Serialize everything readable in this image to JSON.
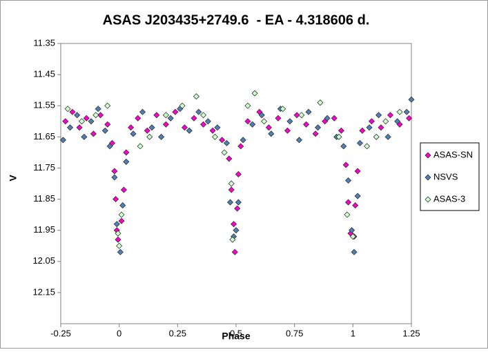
{
  "chart_data": {
    "type": "scatter",
    "title": "ASAS J203435+2749.6  - EA - 4.318606 d.",
    "x_label": "Phase",
    "y_label": "V",
    "xlim": [
      -0.25,
      1.25
    ],
    "xticks": [
      -0.25,
      0,
      0.25,
      0.5,
      0.75,
      1,
      1.25
    ],
    "ylim": [
      11.35,
      12.25
    ],
    "y_inverted": true,
    "yticks": [
      11.35,
      11.45,
      11.55,
      11.65,
      11.75,
      11.85,
      11.95,
      12.05,
      12.15
    ],
    "grid": false,
    "legend": "right",
    "series": [
      {
        "name": "ASAS-SN",
        "color": "#ff00cc",
        "x": [
          -0.23,
          -0.2,
          -0.17,
          -0.14,
          -0.11,
          -0.08,
          -0.05,
          -0.03,
          -0.02,
          -0.015,
          -0.01,
          -0.005,
          0.01,
          0.02,
          0.03,
          0.05,
          0.08,
          0.12,
          0.16,
          0.2,
          0.24,
          0.28,
          0.32,
          0.36,
          0.4,
          0.44,
          0.47,
          0.48,
          0.49,
          0.495,
          0.505,
          0.51,
          0.52,
          0.55,
          0.6,
          0.64,
          0.68,
          0.72,
          0.76,
          0.8,
          0.84,
          0.88,
          0.92,
          0.95,
          0.97,
          0.98,
          0.99,
          1.005,
          1.01,
          1.02,
          1.04,
          1.08,
          1.12,
          1.16,
          1.2,
          1.24
        ],
        "values": [
          11.6,
          11.57,
          11.62,
          11.59,
          11.64,
          11.58,
          11.61,
          11.67,
          11.76,
          11.85,
          11.95,
          11.98,
          11.92,
          11.82,
          11.7,
          11.62,
          11.59,
          11.63,
          11.58,
          11.61,
          11.57,
          11.62,
          11.59,
          11.61,
          11.63,
          11.66,
          11.72,
          11.82,
          11.93,
          12.02,
          11.88,
          11.77,
          11.68,
          11.6,
          11.57,
          11.62,
          11.59,
          11.63,
          11.58,
          11.61,
          11.64,
          11.6,
          11.59,
          11.63,
          11.74,
          11.86,
          11.96,
          11.97,
          11.87,
          11.76,
          11.63,
          11.6,
          11.62,
          11.58,
          11.61,
          11.59
        ]
      },
      {
        "name": "NSVS",
        "color": "#4f7fb5",
        "x": [
          -0.24,
          -0.21,
          -0.18,
          -0.15,
          -0.12,
          -0.09,
          -0.06,
          -0.04,
          -0.02,
          -0.01,
          0.005,
          0.015,
          0.03,
          0.06,
          0.1,
          0.14,
          0.18,
          0.22,
          0.26,
          0.3,
          0.34,
          0.38,
          0.42,
          0.46,
          0.475,
          0.49,
          0.5,
          0.51,
          0.53,
          0.57,
          0.61,
          0.65,
          0.69,
          0.73,
          0.77,
          0.81,
          0.85,
          0.89,
          0.93,
          0.96,
          0.98,
          0.995,
          1.005,
          1.02,
          1.03,
          1.07,
          1.11,
          1.15,
          1.19,
          1.23,
          1.25
        ],
        "values": [
          11.66,
          11.62,
          11.58,
          11.65,
          11.6,
          11.56,
          11.63,
          11.68,
          11.78,
          11.93,
          12.02,
          11.87,
          11.73,
          11.64,
          11.57,
          11.62,
          11.65,
          11.59,
          11.56,
          11.63,
          11.57,
          11.6,
          11.62,
          11.67,
          11.86,
          11.97,
          11.95,
          11.86,
          11.66,
          11.61,
          11.58,
          11.64,
          11.56,
          11.6,
          11.66,
          11.57,
          11.62,
          11.59,
          11.65,
          11.68,
          11.79,
          11.95,
          12.02,
          11.84,
          11.67,
          11.62,
          11.58,
          11.65,
          11.6,
          11.57,
          11.53
        ]
      },
      {
        "name": "ASAS-3",
        "color": "#ccffcc",
        "x": [
          -0.22,
          -0.16,
          -0.1,
          -0.05,
          0,
          -0.005,
          0.01,
          0.09,
          0.13,
          0.2,
          0.27,
          0.33,
          0.36,
          0.41,
          0.45,
          0.485,
          0.48,
          0.55,
          0.58,
          0.62,
          0.7,
          0.78,
          0.86,
          0.94,
          0.975,
          1,
          1.06,
          1.1,
          1.14,
          1.2
        ],
        "values": [
          11.56,
          11.6,
          11.58,
          11.55,
          12.0,
          11.96,
          11.9,
          11.68,
          11.65,
          11.58,
          11.55,
          11.52,
          11.58,
          11.65,
          11.7,
          11.98,
          11.8,
          11.55,
          11.51,
          11.6,
          11.56,
          11.58,
          11.54,
          11.65,
          11.9,
          11.97,
          11.68,
          11.65,
          11.6,
          11.57
        ]
      }
    ]
  }
}
